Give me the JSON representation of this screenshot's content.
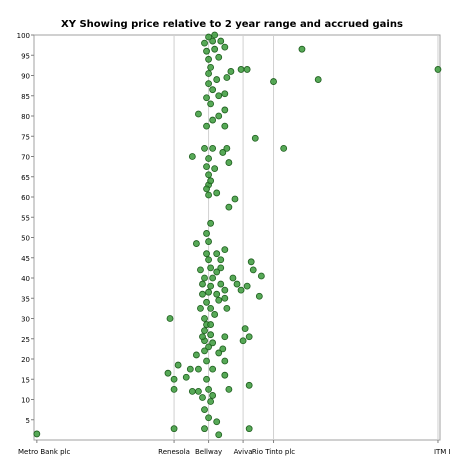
{
  "chart_data": {
    "type": "scatter",
    "title": "XY Showing price relative to 2 year range and accrued gains",
    "xlabel": "",
    "ylabel": "",
    "ylim": [
      0,
      100
    ],
    "y_ticks": [
      5,
      10,
      15,
      20,
      25,
      30,
      35,
      40,
      45,
      50,
      55,
      60,
      65,
      70,
      75,
      80,
      85,
      90,
      95,
      100
    ],
    "x_categories": [
      "Metro Bank plc",
      "Renesola",
      "Bellway",
      "Aviva",
      "Rio Tinto plc",
      "ITM Powe"
    ],
    "grid": "vertical lines at labelled categories",
    "legend": "none",
    "point_color": "#3a9a3a",
    "point_edge_color": "#1e5e1e",
    "series": [
      {
        "points": [
          {
            "x": 0.7,
            "y": 1.5
          },
          {
            "x": 34.5,
            "y": 2.8
          },
          {
            "x": 42.0,
            "y": 2.8
          },
          {
            "x": 45.5,
            "y": 1.3
          },
          {
            "x": 53.0,
            "y": 2.8
          },
          {
            "x": 43.0,
            "y": 5.5
          },
          {
            "x": 45.0,
            "y": 4.5
          },
          {
            "x": 42.0,
            "y": 7.5
          },
          {
            "x": 43.5,
            "y": 9.5
          },
          {
            "x": 41.5,
            "y": 10.5
          },
          {
            "x": 44.0,
            "y": 11.0
          },
          {
            "x": 34.5,
            "y": 12.5
          },
          {
            "x": 39.0,
            "y": 12.0
          },
          {
            "x": 40.5,
            "y": 12.0
          },
          {
            "x": 43.0,
            "y": 12.5
          },
          {
            "x": 48.0,
            "y": 12.5
          },
          {
            "x": 53.0,
            "y": 13.5
          },
          {
            "x": 34.5,
            "y": 15.0
          },
          {
            "x": 37.5,
            "y": 15.5
          },
          {
            "x": 42.5,
            "y": 15.0
          },
          {
            "x": 47.0,
            "y": 16.0
          },
          {
            "x": 33.0,
            "y": 16.5
          },
          {
            "x": 38.5,
            "y": 17.5
          },
          {
            "x": 40.5,
            "y": 17.5
          },
          {
            "x": 44.0,
            "y": 17.5
          },
          {
            "x": 35.5,
            "y": 18.5
          },
          {
            "x": 42.5,
            "y": 19.5
          },
          {
            "x": 47.0,
            "y": 19.5
          },
          {
            "x": 40.0,
            "y": 21.0
          },
          {
            "x": 42.0,
            "y": 22.0
          },
          {
            "x": 45.5,
            "y": 21.5
          },
          {
            "x": 43.0,
            "y": 23.0
          },
          {
            "x": 46.5,
            "y": 22.5
          },
          {
            "x": 42.0,
            "y": 24.5
          },
          {
            "x": 44.0,
            "y": 24.0
          },
          {
            "x": 51.5,
            "y": 24.5
          },
          {
            "x": 41.5,
            "y": 25.5
          },
          {
            "x": 43.5,
            "y": 26.0
          },
          {
            "x": 47.0,
            "y": 25.5
          },
          {
            "x": 53.0,
            "y": 25.5
          },
          {
            "x": 42.0,
            "y": 27.0
          },
          {
            "x": 52.0,
            "y": 27.5
          },
          {
            "x": 42.5,
            "y": 28.5
          },
          {
            "x": 43.5,
            "y": 28.5
          },
          {
            "x": 33.5,
            "y": 30.0
          },
          {
            "x": 42.0,
            "y": 30.0
          },
          {
            "x": 44.5,
            "y": 31.0
          },
          {
            "x": 41.0,
            "y": 32.5
          },
          {
            "x": 43.5,
            "y": 32.5
          },
          {
            "x": 47.5,
            "y": 32.5
          },
          {
            "x": 42.5,
            "y": 34.0
          },
          {
            "x": 45.5,
            "y": 34.5
          },
          {
            "x": 47.0,
            "y": 35.0
          },
          {
            "x": 55.5,
            "y": 35.5
          },
          {
            "x": 41.5,
            "y": 36.0
          },
          {
            "x": 43.0,
            "y": 36.5
          },
          {
            "x": 45.0,
            "y": 36.0
          },
          {
            "x": 47.0,
            "y": 37.0
          },
          {
            "x": 51.0,
            "y": 37.0
          },
          {
            "x": 52.5,
            "y": 38.0
          },
          {
            "x": 41.5,
            "y": 38.5
          },
          {
            "x": 43.5,
            "y": 38.0
          },
          {
            "x": 46.0,
            "y": 38.5
          },
          {
            "x": 50.0,
            "y": 38.5
          },
          {
            "x": 42.0,
            "y": 40.0
          },
          {
            "x": 44.0,
            "y": 40.0
          },
          {
            "x": 49.0,
            "y": 40.0
          },
          {
            "x": 56.0,
            "y": 40.5
          },
          {
            "x": 45.0,
            "y": 41.5
          },
          {
            "x": 41.0,
            "y": 42.0
          },
          {
            "x": 43.5,
            "y": 42.5
          },
          {
            "x": 46.0,
            "y": 42.5
          },
          {
            "x": 54.0,
            "y": 42.0
          },
          {
            "x": 43.0,
            "y": 44.5
          },
          {
            "x": 46.0,
            "y": 44.5
          },
          {
            "x": 53.5,
            "y": 44.0
          },
          {
            "x": 42.5,
            "y": 46.0
          },
          {
            "x": 45.0,
            "y": 46.0
          },
          {
            "x": 47.0,
            "y": 47.0
          },
          {
            "x": 40.0,
            "y": 48.5
          },
          {
            "x": 43.0,
            "y": 49.0
          },
          {
            "x": 42.5,
            "y": 51.0
          },
          {
            "x": 43.5,
            "y": 53.5
          },
          {
            "x": 48.0,
            "y": 57.5
          },
          {
            "x": 49.5,
            "y": 59.5
          },
          {
            "x": 43.0,
            "y": 60.5
          },
          {
            "x": 45.0,
            "y": 61.0
          },
          {
            "x": 43.0,
            "y": 63.0
          },
          {
            "x": 42.5,
            "y": 62.0
          },
          {
            "x": 43.5,
            "y": 64.0
          },
          {
            "x": 43.0,
            "y": 65.5
          },
          {
            "x": 42.5,
            "y": 67.5
          },
          {
            "x": 44.5,
            "y": 67.0
          },
          {
            "x": 48.0,
            "y": 68.5
          },
          {
            "x": 43.0,
            "y": 69.5
          },
          {
            "x": 39.0,
            "y": 70.0
          },
          {
            "x": 46.5,
            "y": 71.0
          },
          {
            "x": 42.0,
            "y": 72.0
          },
          {
            "x": 44.0,
            "y": 72.0
          },
          {
            "x": 47.5,
            "y": 72.0
          },
          {
            "x": 61.5,
            "y": 72.0
          },
          {
            "x": 54.5,
            "y": 74.5
          },
          {
            "x": 42.5,
            "y": 77.5
          },
          {
            "x": 47.0,
            "y": 77.5
          },
          {
            "x": 44.0,
            "y": 79.0
          },
          {
            "x": 40.5,
            "y": 80.5
          },
          {
            "x": 45.5,
            "y": 80.0
          },
          {
            "x": 47.0,
            "y": 81.5
          },
          {
            "x": 43.5,
            "y": 83.0
          },
          {
            "x": 42.5,
            "y": 84.5
          },
          {
            "x": 45.5,
            "y": 85.0
          },
          {
            "x": 47.0,
            "y": 85.5
          },
          {
            "x": 44.0,
            "y": 86.5
          },
          {
            "x": 43.0,
            "y": 88.0
          },
          {
            "x": 45.0,
            "y": 89.0
          },
          {
            "x": 47.5,
            "y": 89.5
          },
          {
            "x": 59.0,
            "y": 88.5
          },
          {
            "x": 70.0,
            "y": 89.0
          },
          {
            "x": 43.0,
            "y": 90.5
          },
          {
            "x": 48.5,
            "y": 91.0
          },
          {
            "x": 51.0,
            "y": 91.5
          },
          {
            "x": 52.5,
            "y": 91.5
          },
          {
            "x": 43.5,
            "y": 92.0
          },
          {
            "x": 43.0,
            "y": 94.0
          },
          {
            "x": 45.5,
            "y": 94.5
          },
          {
            "x": 42.5,
            "y": 96.0
          },
          {
            "x": 44.5,
            "y": 96.5
          },
          {
            "x": 47.0,
            "y": 97.0
          },
          {
            "x": 66.0,
            "y": 96.5
          },
          {
            "x": 42.0,
            "y": 98.0
          },
          {
            "x": 44.0,
            "y": 98.5
          },
          {
            "x": 46.0,
            "y": 98.5
          },
          {
            "x": 43.0,
            "y": 99.5
          },
          {
            "x": 44.5,
            "y": 100.0
          },
          {
            "x": 99.5,
            "y": 91.5
          }
        ]
      }
    ]
  }
}
